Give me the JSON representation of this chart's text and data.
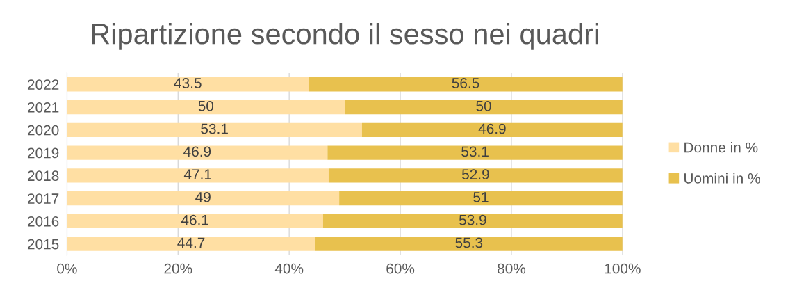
{
  "chart_data": {
    "type": "bar",
    "orientation": "horizontal",
    "stacked": true,
    "title": "Ripartizione secondo il sesso nei quadri",
    "categories": [
      "2022",
      "2021",
      "2020",
      "2019",
      "2018",
      "2017",
      "2016",
      "2015"
    ],
    "series": [
      {
        "name": "Donne in %",
        "color": "#ffdfa3",
        "values": [
          43.5,
          50,
          53.1,
          46.9,
          47.1,
          49,
          46.1,
          44.7
        ]
      },
      {
        "name": "Uomini in %",
        "color": "#e8c14e",
        "values": [
          56.5,
          50,
          46.9,
          53.1,
          52.9,
          51,
          53.9,
          55.3
        ]
      }
    ],
    "xlim": [
      0,
      100
    ],
    "xticks": [
      {
        "value": 0,
        "label": "0%"
      },
      {
        "value": 20,
        "label": "20%"
      },
      {
        "value": 40,
        "label": "40%"
      },
      {
        "value": 60,
        "label": "60%"
      },
      {
        "value": 80,
        "label": "80%"
      },
      {
        "value": 100,
        "label": "100%"
      }
    ],
    "grid": "x",
    "legend": "right",
    "data_labels": true
  }
}
